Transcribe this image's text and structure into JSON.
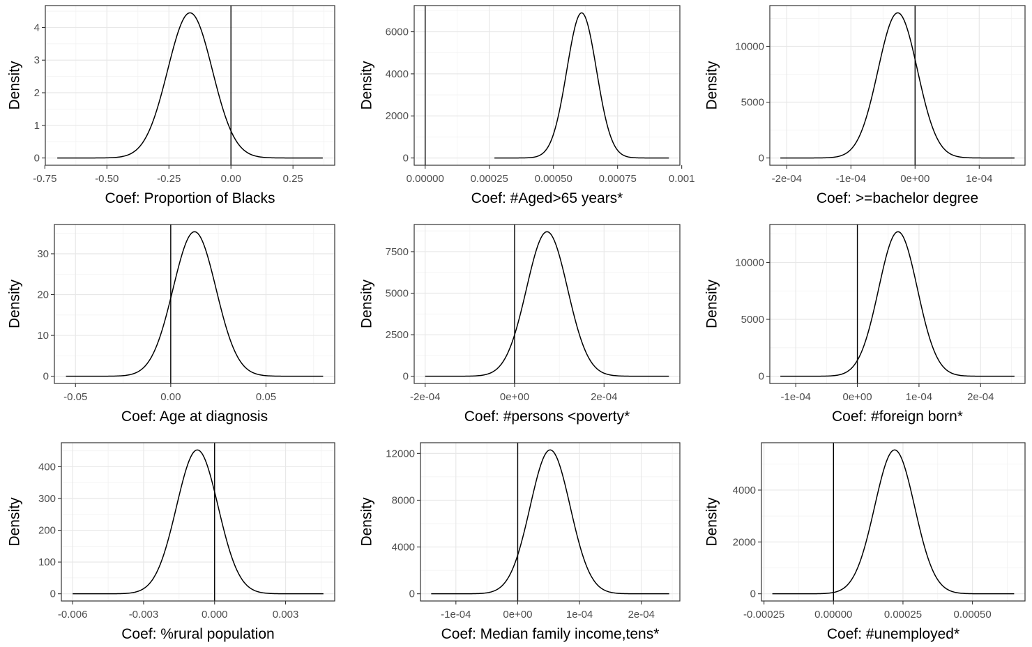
{
  "chart_data": [
    {
      "type": "line",
      "xlabel": "Coef: Proportion of Blacks",
      "ylabel": "Density",
      "xlim": [
        -0.7,
        0.37
      ],
      "ylim": [
        0,
        4.45
      ],
      "xticks": [
        -0.75,
        -0.5,
        -0.25,
        0.0,
        0.25
      ],
      "xtick_labels": [
        "-0.75",
        "-0.50",
        "-0.25",
        "0.00",
        "0.25"
      ],
      "yticks": [
        0,
        1,
        2,
        3,
        4
      ],
      "ytick_labels": [
        "0",
        "1",
        "2",
        "3",
        "4"
      ],
      "curve": {
        "mean": -0.165,
        "sd": 0.09,
        "peak": 4.45,
        "x_from": -0.7,
        "x_to": 0.37
      },
      "vline_x": 0,
      "grid": true,
      "line_color": "#000000"
    },
    {
      "type": "line",
      "xlabel": "Coef: #Aged>65 years*",
      "ylabel": "Density",
      "xlim": [
        0,
        0.00095
      ],
      "ylim": [
        0,
        6900
      ],
      "xticks": [
        0,
        0.00025,
        0.0005,
        0.00075,
        0.001
      ],
      "xtick_labels": [
        "0.00000",
        "0.00025",
        "0.00050",
        "0.00075",
        "0.001"
      ],
      "yticks": [
        0,
        2000,
        4000,
        6000
      ],
      "ytick_labels": [
        "0",
        "2000",
        "4000",
        "6000"
      ],
      "curve": {
        "mean": 0.00061,
        "sd": 5.78e-05,
        "peak": 6900,
        "x_from": 0.00027,
        "x_to": 0.00095
      },
      "vline_x": 0,
      "grid": true,
      "line_color": "#000000"
    },
    {
      "type": "line",
      "xlabel": "Coef: >=bachelor degree",
      "ylabel": "Density",
      "xlim": [
        -0.00021,
        0.000155
      ],
      "ylim": [
        0,
        13000
      ],
      "xticks": [
        -0.0002,
        -0.0001,
        0,
        0.0001
      ],
      "xtick_labels": [
        "-2e-04",
        "-1e-04",
        "0e+00",
        "1e-04"
      ],
      "yticks": [
        0,
        5000,
        10000
      ],
      "ytick_labels": [
        "0",
        "5000",
        "10000"
      ],
      "curve": {
        "mean": -2.7e-05,
        "sd": 3.07e-05,
        "peak": 13000,
        "x_from": -0.00021,
        "x_to": 0.000155
      },
      "vline_x": 0,
      "grid": true,
      "line_color": "#000000"
    },
    {
      "type": "line",
      "xlabel": "Coef: Age at diagnosis",
      "ylabel": "Density",
      "xlim": [
        -0.055,
        0.08
      ],
      "ylim": [
        0,
        35.4
      ],
      "xticks": [
        -0.05,
        0,
        0.05
      ],
      "xtick_labels": [
        "-0.05",
        "0.00",
        "0.05"
      ],
      "yticks": [
        0,
        10,
        20,
        30
      ],
      "ytick_labels": [
        "0",
        "10",
        "20",
        "30"
      ],
      "curve": {
        "mean": 0.0125,
        "sd": 0.01127,
        "peak": 35.4,
        "x_from": -0.055,
        "x_to": 0.08
      },
      "vline_x": 0,
      "grid": true,
      "line_color": "#000000"
    },
    {
      "type": "line",
      "xlabel": "Coef: #persons <poverty*",
      "ylabel": "Density",
      "xlim": [
        -0.0002,
        0.000345
      ],
      "ylim": [
        0,
        8700
      ],
      "xticks": [
        -0.0002,
        0,
        0.0002
      ],
      "xtick_labels": [
        "-2e-04",
        "0e+00",
        "2e-04"
      ],
      "yticks": [
        0,
        2500,
        5000,
        7500
      ],
      "ytick_labels": [
        "0",
        "2500",
        "5000",
        "7500"
      ],
      "curve": {
        "mean": 7.25e-05,
        "sd": 4.59e-05,
        "peak": 8700,
        "x_from": -0.0002,
        "x_to": 0.000345
      },
      "vline_x": 0,
      "grid": true,
      "line_color": "#000000"
    },
    {
      "type": "line",
      "xlabel": "Coef: #foreign born*",
      "ylabel": "Density",
      "xlim": [
        -0.000125,
        0.000255
      ],
      "ylim": [
        0,
        12700
      ],
      "xticks": [
        -0.0001,
        0,
        0.0001,
        0.0002
      ],
      "xtick_labels": [
        "-1e-04",
        "0e+00",
        "1e-04",
        "2e-04"
      ],
      "yticks": [
        0,
        5000,
        10000
      ],
      "ytick_labels": [
        "0",
        "5000",
        "10000"
      ],
      "curve": {
        "mean": 6.6e-05,
        "sd": 3.14e-05,
        "peak": 12700,
        "x_from": -0.000125,
        "x_to": 0.000255
      },
      "vline_x": 0,
      "grid": true,
      "line_color": "#000000"
    },
    {
      "type": "line",
      "xlabel": "Coef: %rural population",
      "ylabel": "Density",
      "xlim": [
        -0.006,
        0.0046
      ],
      "ylim": [
        0,
        453
      ],
      "xticks": [
        -0.006,
        -0.003,
        0,
        0.003
      ],
      "xtick_labels": [
        "-0.006",
        "-0.003",
        "0.000",
        "0.003"
      ],
      "yticks": [
        0,
        100,
        200,
        300,
        400
      ],
      "ytick_labels": [
        "0",
        "100",
        "200",
        "300",
        "400"
      ],
      "curve": {
        "mean": -0.00073,
        "sd": 0.00088,
        "peak": 453,
        "x_from": -0.006,
        "x_to": 0.0046
      },
      "vline_x": 0,
      "grid": true,
      "line_color": "#000000"
    },
    {
      "type": "line",
      "xlabel": "Coef: Median family income,tens*",
      "ylabel": "Density",
      "xlim": [
        -0.00014,
        0.000245
      ],
      "ylim": [
        0,
        12300
      ],
      "xticks": [
        -0.0001,
        0,
        0.0001,
        0.0002
      ],
      "xtick_labels": [
        "-1e-04",
        "0e+00",
        "1e-04",
        "2e-04"
      ],
      "yticks": [
        0,
        4000,
        8000,
        12000
      ],
      "ytick_labels": [
        "0",
        "4000",
        "8000",
        "12000"
      ],
      "curve": {
        "mean": 5.25e-05,
        "sd": 3.24e-05,
        "peak": 12300,
        "x_from": -0.00014,
        "x_to": 0.000245
      },
      "vline_x": 0,
      "grid": true,
      "line_color": "#000000"
    },
    {
      "type": "line",
      "xlabel": "Coef: #unemployed*",
      "ylabel": "Density",
      "xlim": [
        -0.00022,
        0.00065
      ],
      "ylim": [
        0,
        5550
      ],
      "xticks": [
        -0.00025,
        0,
        0.00025,
        0.0005
      ],
      "xtick_labels": [
        "-0.00025",
        "0.00000",
        "0.00025",
        "0.00050"
      ],
      "yticks": [
        0,
        2000,
        4000
      ],
      "ytick_labels": [
        "0",
        "2000",
        "4000"
      ],
      "curve": {
        "mean": 0.00022,
        "sd": 7.19e-05,
        "peak": 5550,
        "x_from": -0.00022,
        "x_to": 0.00065
      },
      "vline_x": 0,
      "grid": true,
      "line_color": "#000000"
    }
  ]
}
